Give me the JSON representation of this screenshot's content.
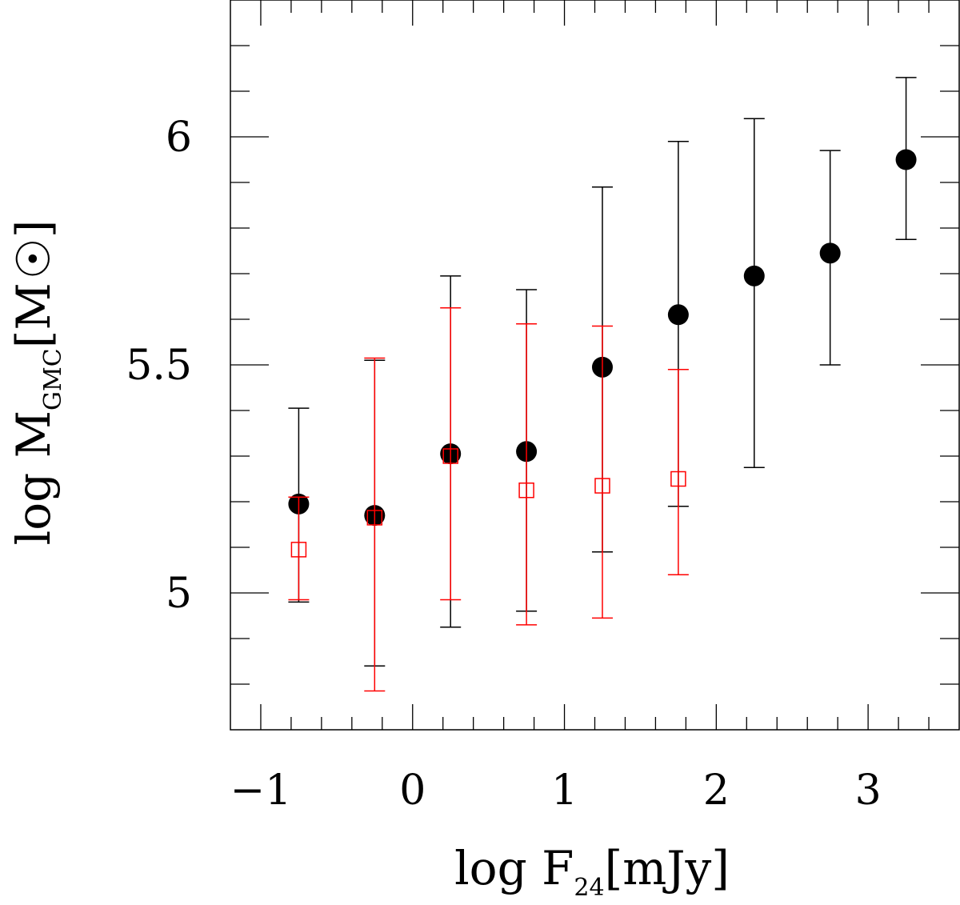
{
  "chart_data": {
    "type": "scatter",
    "title": "",
    "xlabel": {
      "prefix": "log F",
      "subscript": "24",
      "suffix": "[mJy]"
    },
    "ylabel": {
      "prefix": "log M",
      "subscript": "GMC",
      "bracket_open": "[M",
      "bracket_close": "]"
    },
    "xlim": [
      -1.2,
      3.6
    ],
    "ylim": [
      4.7,
      6.3
    ],
    "x_ticks": [
      {
        "value": -1,
        "label": "−1"
      },
      {
        "value": 0,
        "label": "0"
      },
      {
        "value": 1,
        "label": "1"
      },
      {
        "value": 2,
        "label": "2"
      },
      {
        "value": 3,
        "label": "3"
      }
    ],
    "y_ticks": [
      {
        "value": 5,
        "label": "5"
      },
      {
        "value": 5.5,
        "label": "5.5"
      },
      {
        "value": 6,
        "label": "6"
      }
    ],
    "x_minor_step": 0.2,
    "y_minor_step": 0.1,
    "grid": false,
    "series": [
      {
        "marker": "filled-circle",
        "color": "#000000",
        "points": [
          {
            "x": -0.75,
            "y": 5.195,
            "low": 4.98,
            "high": 5.405
          },
          {
            "x": -0.25,
            "y": 5.17,
            "low": 4.84,
            "high": 5.51
          },
          {
            "x": 0.25,
            "y": 5.305,
            "low": 4.925,
            "high": 5.695
          },
          {
            "x": 0.75,
            "y": 5.31,
            "low": 4.96,
            "high": 5.665
          },
          {
            "x": 1.25,
            "y": 5.495,
            "low": 5.09,
            "high": 5.89
          },
          {
            "x": 1.75,
            "y": 5.61,
            "low": 5.19,
            "high": 5.99
          },
          {
            "x": 2.25,
            "y": 5.695,
            "low": 5.275,
            "high": 6.04
          },
          {
            "x": 2.75,
            "y": 5.745,
            "low": 5.5,
            "high": 5.97
          },
          {
            "x": 3.25,
            "y": 5.95,
            "low": 5.775,
            "high": 6.13
          }
        ]
      },
      {
        "marker": "open-square",
        "color": "#ff0000",
        "points": [
          {
            "x": -0.75,
            "y": 5.095,
            "low": 4.985,
            "high": 5.21
          },
          {
            "x": -0.25,
            "y": 5.165,
            "low": 4.785,
            "high": 5.515
          },
          {
            "x": 0.25,
            "y": 5.3,
            "low": 4.985,
            "high": 5.625
          },
          {
            "x": 0.75,
            "y": 5.225,
            "low": 4.93,
            "high": 5.59
          },
          {
            "x": 1.25,
            "y": 5.235,
            "low": 4.945,
            "h": 0,
            "high": 5.585
          },
          {
            "x": 1.75,
            "y": 5.25,
            "low": 5.04,
            "high": 5.49
          }
        ]
      }
    ]
  }
}
